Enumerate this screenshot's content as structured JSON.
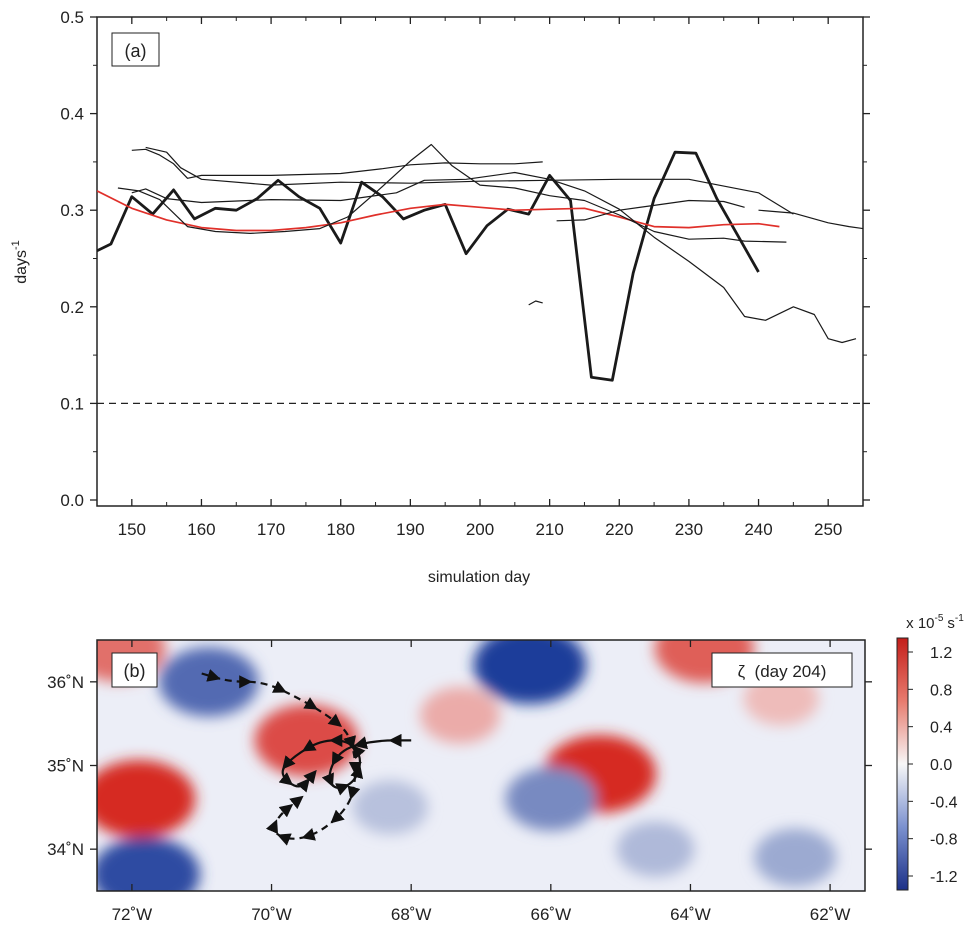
{
  "chart_data": [
    {
      "type": "line",
      "panel_label": "(a)",
      "xlabel": "simulation day",
      "ylabel_base": "days",
      "ylabel_exp": "-1",
      "xlim": [
        145,
        255
      ],
      "ylim": [
        0.0,
        0.5
      ],
      "xticks": [
        "150",
        "160",
        "170",
        "180",
        "190",
        "200",
        "210",
        "220",
        "230",
        "240",
        "250"
      ],
      "yticks": [
        "0.0",
        "0.1",
        "0.2",
        "0.3",
        "0.4",
        "0.5"
      ],
      "reference_line": {
        "y": 0.1,
        "style": "dashed"
      },
      "colors": {
        "thick": "#1a1a1a",
        "thin": "#1a1a1a",
        "red": "#e0302a"
      },
      "series": [
        {
          "style": "thick",
          "points": [
            [
              145,
              0.258
            ],
            [
              147,
              0.265
            ],
            [
              150,
              0.314
            ],
            [
              153,
              0.296
            ],
            [
              156,
              0.321
            ],
            [
              159,
              0.291
            ],
            [
              162,
              0.302
            ],
            [
              165,
              0.3
            ],
            [
              168,
              0.312
            ],
            [
              171,
              0.331
            ],
            [
              174,
              0.314
            ],
            [
              177,
              0.302
            ],
            [
              180,
              0.266
            ],
            [
              183,
              0.329
            ],
            [
              186,
              0.314
            ],
            [
              189,
              0.291
            ],
            [
              192,
              0.3
            ],
            [
              195,
              0.306
            ],
            [
              198,
              0.255
            ],
            [
              201,
              0.284
            ],
            [
              204,
              0.301
            ],
            [
              207,
              0.296
            ],
            [
              210,
              0.336
            ],
            [
              213,
              0.31
            ],
            [
              216,
              0.127
            ],
            [
              219,
              0.124
            ],
            [
              222,
              0.235
            ],
            [
              225,
              0.312
            ],
            [
              228,
              0.36
            ],
            [
              231,
              0.359
            ],
            [
              234,
              0.312
            ],
            [
              237,
              0.274
            ],
            [
              240,
              0.236
            ]
          ]
        },
        {
          "style": "red",
          "points": [
            [
              145,
              0.32
            ],
            [
              150,
              0.302
            ],
            [
              155,
              0.29
            ],
            [
              160,
              0.282
            ],
            [
              165,
              0.279
            ],
            [
              170,
              0.279
            ],
            [
              175,
              0.282
            ],
            [
              180,
              0.287
            ],
            [
              185,
              0.295
            ],
            [
              190,
              0.302
            ],
            [
              195,
              0.306
            ],
            [
              200,
              0.303
            ],
            [
              205,
              0.3
            ],
            [
              210,
              0.301
            ],
            [
              215,
              0.302
            ],
            [
              220,
              0.293
            ],
            [
              225,
              0.283
            ],
            [
              230,
              0.282
            ],
            [
              235,
              0.285
            ],
            [
              240,
              0.286
            ],
            [
              243,
              0.283
            ]
          ]
        },
        {
          "style": "thin",
          "points": [
            [
              150,
              0.362
            ],
            [
              152,
              0.363
            ],
            [
              154,
              0.357
            ],
            [
              156,
              0.348
            ],
            [
              158,
              0.333
            ],
            [
              160,
              0.336
            ],
            [
              170,
              0.336
            ],
            [
              180,
              0.338
            ],
            [
              186,
              0.343
            ],
            [
              190,
              0.347
            ],
            [
              195,
              0.349
            ],
            [
              200,
              0.348
            ],
            [
              205,
              0.348
            ],
            [
              209,
              0.35
            ]
          ]
        },
        {
          "style": "thin",
          "points": [
            [
              152,
              0.365
            ],
            [
              155,
              0.36
            ],
            [
              157,
              0.344
            ],
            [
              160,
              0.332
            ],
            [
              170,
              0.326
            ],
            [
              180,
              0.329
            ],
            [
              190,
              0.328
            ],
            [
              200,
              0.33
            ],
            [
              210,
              0.331
            ],
            [
              220,
              0.332
            ],
            [
              230,
              0.332
            ],
            [
              240,
              0.318
            ],
            [
              245,
              0.296
            ]
          ]
        },
        {
          "style": "thin",
          "points": [
            [
              150,
              0.318
            ],
            [
              152,
              0.322
            ],
            [
              155,
              0.312
            ],
            [
              160,
              0.308
            ],
            [
              170,
              0.311
            ],
            [
              180,
              0.31
            ],
            [
              188,
              0.318
            ],
            [
              192,
              0.331
            ],
            [
              198,
              0.332
            ],
            [
              205,
              0.339
            ],
            [
              210,
              0.332
            ],
            [
              215,
              0.32
            ],
            [
              220,
              0.301
            ],
            [
              225,
              0.272
            ],
            [
              230,
              0.247
            ],
            [
              235,
              0.22
            ],
            [
              238,
              0.19
            ],
            [
              241,
              0.186
            ],
            [
              245,
              0.2
            ],
            [
              248,
              0.192
            ],
            [
              250,
              0.167
            ],
            [
              252,
              0.163
            ],
            [
              254,
              0.167
            ]
          ]
        },
        {
          "style": "thin",
          "points": [
            [
              148,
              0.323
            ],
            [
              151,
              0.32
            ],
            [
              154,
              0.311
            ],
            [
              158,
              0.283
            ],
            [
              162,
              0.278
            ],
            [
              167,
              0.276
            ],
            [
              172,
              0.278
            ],
            [
              177,
              0.281
            ],
            [
              181,
              0.293
            ],
            [
              185,
              0.318
            ],
            [
              190,
              0.351
            ],
            [
              193,
              0.368
            ],
            [
              196,
              0.346
            ],
            [
              200,
              0.326
            ],
            [
              205,
              0.323
            ],
            [
              210,
              0.315
            ],
            [
              215,
              0.31
            ],
            [
              220,
              0.295
            ],
            [
              225,
              0.278
            ],
            [
              230,
              0.27
            ],
            [
              235,
              0.271
            ],
            [
              238,
              0.268
            ],
            [
              244,
              0.267
            ]
          ]
        },
        {
          "style": "thin",
          "points": [
            [
              211,
              0.289
            ],
            [
              215,
              0.29
            ],
            [
              220,
              0.3
            ],
            [
              225,
              0.305
            ],
            [
              230,
              0.31
            ],
            [
              235,
              0.309
            ],
            [
              238,
              0.303
            ]
          ]
        },
        {
          "style": "thin",
          "points": [
            [
              240,
              0.3
            ],
            [
              245,
              0.297
            ],
            [
              250,
              0.287
            ],
            [
              253,
              0.283
            ],
            [
              257,
              0.279
            ]
          ]
        },
        {
          "style": "thin",
          "points": [
            [
              207,
              0.202
            ],
            [
              208,
              0.206
            ],
            [
              209,
              0.204
            ]
          ]
        }
      ]
    },
    {
      "type": "heatmap",
      "panel_label": "(b)",
      "annotation": "ζ  (day 204)",
      "colorbar_title": "x 10",
      "colorbar_exp": "-5",
      "colorbar_unit": "s",
      "colorbar_unit_exp": "-1",
      "colorbar_ticks": [
        "1.2",
        "0.8",
        "0.4",
        "0.0",
        "-0.4",
        "-0.8",
        "-1.2"
      ],
      "colorbar_range": [
        -1.35,
        1.35
      ],
      "xticks": [
        "72˚W",
        "70˚W",
        "68˚W",
        "66˚W",
        "64˚W",
        "62˚W"
      ],
      "yticks": [
        "36˚N",
        "35˚N",
        "34˚N"
      ],
      "lon_range": [
        -72.5,
        -61.5
      ],
      "lat_range": [
        33.5,
        36.5
      ],
      "colors": {
        "red": "#d62a24",
        "white": "#f8f8f8",
        "blue": "#1c3c9a"
      },
      "features": [
        {
          "lon": -71.9,
          "lat": 34.6,
          "sign": "positive",
          "strength": 1.2
        },
        {
          "lon": -69.5,
          "lat": 35.3,
          "sign": "positive",
          "strength": 1.0
        },
        {
          "lon": -65.3,
          "lat": 34.9,
          "sign": "positive",
          "strength": 1.2
        },
        {
          "lon": -67.3,
          "lat": 35.6,
          "sign": "positive",
          "strength": 0.45
        },
        {
          "lon": -62.7,
          "lat": 35.8,
          "sign": "positive",
          "strength": 0.35
        },
        {
          "lon": -63.8,
          "lat": 36.4,
          "sign": "positive",
          "strength": 0.9
        },
        {
          "lon": -72.2,
          "lat": 36.4,
          "sign": "positive",
          "strength": 0.8
        },
        {
          "lon": -66.3,
          "lat": 36.2,
          "sign": "negative",
          "strength": 1.2
        },
        {
          "lon": -70.9,
          "lat": 36.0,
          "sign": "negative",
          "strength": 0.9
        },
        {
          "lon": -71.8,
          "lat": 33.7,
          "sign": "negative",
          "strength": 1.1
        },
        {
          "lon": -66.0,
          "lat": 34.6,
          "sign": "negative",
          "strength": 0.7
        },
        {
          "lon": -64.5,
          "lat": 34.0,
          "sign": "negative",
          "strength": 0.4
        },
        {
          "lon": -62.5,
          "lat": 33.9,
          "sign": "negative",
          "strength": 0.5
        },
        {
          "lon": -68.3,
          "lat": 34.5,
          "sign": "negative",
          "strength": 0.35
        }
      ],
      "trajectories": [
        {
          "style": "solid",
          "points": [
            [
              -68.0,
              35.3
            ],
            [
              -68.5,
              35.3
            ],
            [
              -69.0,
              35.2
            ],
            [
              -69.2,
              34.9
            ],
            [
              -69.1,
              34.7
            ],
            [
              -68.8,
              34.8
            ],
            [
              -68.7,
              35.1
            ],
            [
              -68.9,
              35.3
            ],
            [
              -69.3,
              35.3
            ],
            [
              -69.7,
              35.1
            ],
            [
              -69.9,
              34.9
            ],
            [
              -69.6,
              34.7
            ],
            [
              -69.4,
              34.9
            ]
          ]
        },
        {
          "style": "dashed",
          "points": [
            [
              -71.0,
              36.1
            ],
            [
              -70.6,
              36.0
            ],
            [
              -70.1,
              36.0
            ],
            [
              -69.6,
              35.8
            ],
            [
              -69.2,
              35.6
            ],
            [
              -68.9,
              35.4
            ],
            [
              -68.8,
              35.1
            ],
            [
              -68.8,
              34.8
            ],
            [
              -68.9,
              34.5
            ],
            [
              -69.3,
              34.2
            ],
            [
              -69.7,
              34.1
            ],
            [
              -70.0,
              34.2
            ],
            [
              -69.9,
              34.4
            ],
            [
              -69.6,
              34.6
            ]
          ]
        }
      ]
    }
  ]
}
